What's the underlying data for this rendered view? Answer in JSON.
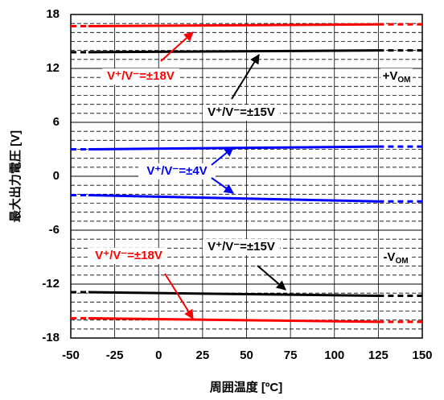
{
  "chart_data": {
    "type": "line",
    "xlabel": "周囲温度 [ºC]",
    "ylabel": "最大出力電圧 [V]",
    "x": [
      -50,
      -40,
      125,
      150
    ],
    "series": [
      {
        "name": "+V/±18V",
        "color": "#ff0000",
        "values": [
          16.7,
          16.7,
          16.9,
          16.9
        ]
      },
      {
        "name": "+V/±15V",
        "color": "#000000",
        "values": [
          13.8,
          13.8,
          14.0,
          14.0
        ]
      },
      {
        "name": "+V/±4V",
        "color": "#0000ff",
        "values": [
          3.0,
          3.0,
          3.3,
          3.3
        ]
      },
      {
        "name": "-V/±4V",
        "color": "#0000ff",
        "values": [
          -2.1,
          -2.1,
          -2.8,
          -2.8
        ]
      },
      {
        "name": "-V/±15V",
        "color": "#000000",
        "values": [
          -12.9,
          -12.9,
          -13.3,
          -13.3
        ]
      },
      {
        "name": "-V/±18V",
        "color": "#ff0000",
        "values": [
          -15.8,
          -15.8,
          -16.2,
          -16.2
        ]
      }
    ],
    "xlim": [
      -50,
      150
    ],
    "xticks": [
      -50,
      -25,
      0,
      25,
      50,
      75,
      100,
      125,
      150
    ],
    "ylim": [
      -18,
      18
    ],
    "yticks": [
      -18,
      -12,
      -6,
      0,
      6,
      12,
      18
    ],
    "yminorticks": [
      -17,
      -16,
      -15,
      -14,
      -13,
      -11,
      -10,
      -9,
      -8,
      -7,
      -5,
      -4,
      -3,
      -2,
      -1,
      1,
      2,
      3,
      4,
      5,
      7,
      8,
      9,
      10,
      11,
      13,
      14,
      15,
      16,
      17
    ],
    "grid": true,
    "annotations": [
      {
        "text": "V⁺/V⁻=±18V",
        "color": "#ff0000"
      },
      {
        "text": "V⁺/V⁻=±15V",
        "color": "#000000"
      },
      {
        "text": "V⁺/V⁻=±4V",
        "color": "#0000ff"
      },
      {
        "text": "V⁺/V⁻=±15V",
        "color": "#000000"
      },
      {
        "text": "V⁺/V⁻=±18V",
        "color": "#ff0000"
      },
      {
        "text": "+V",
        "sub": "OM",
        "color": "#000000"
      },
      {
        "text": "-V",
        "sub": "OM",
        "color": "#000000"
      }
    ]
  }
}
